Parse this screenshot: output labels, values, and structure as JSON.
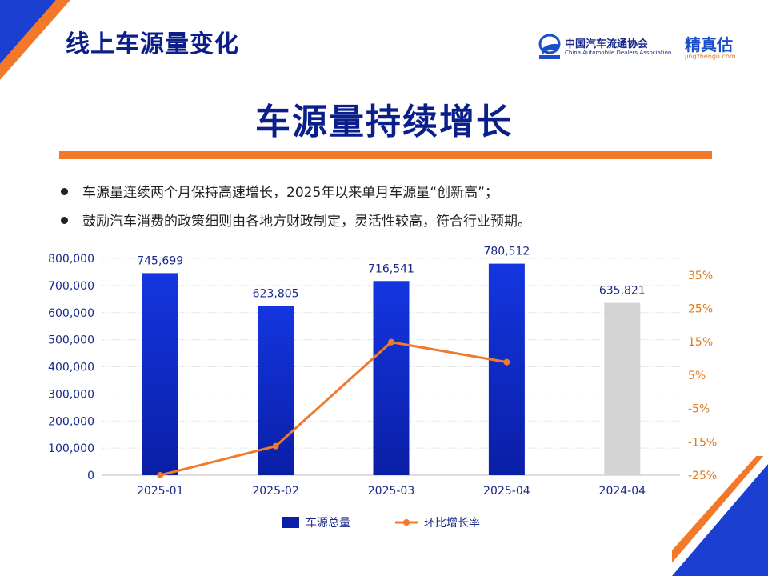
{
  "page": {
    "title": "线上车源量变化",
    "headline": "车源量持续增长",
    "bullets": [
      "车源量连续两个月保持高速增长，2025年以来单月车源量“创新高”；",
      "鼓励汽车消费的政策细则由各地方财政制定，灵活性较高，符合行业预期。"
    ]
  },
  "logos": {
    "association_cn": "中国汽车流通协会",
    "association_en": "China Automobile Dealers Association",
    "brand_cn": "精真估",
    "brand_en": "jingzhengu.com"
  },
  "colors": {
    "title": "#0b1f8a",
    "accent_orange": "#f4782a",
    "bar_blue_top": "#1436e0",
    "bar_blue_bottom": "#0a1fa6",
    "bar_gray": "#d4d4d4",
    "line": "#f07a2c",
    "right_axis_text": "#e07a1c"
  },
  "chart_data": {
    "type": "bar",
    "categories": [
      "2025-01",
      "2025-02",
      "2025-03",
      "2025-04",
      "2024-04"
    ],
    "series": [
      {
        "name": "车源总量",
        "type": "bar",
        "axis": "left",
        "values": [
          745699,
          623805,
          716541,
          780512,
          635821
        ],
        "labels": [
          "745,699",
          "623,805",
          "716,541",
          "780,512",
          "635,821"
        ],
        "highlight": [
          false,
          false,
          false,
          false,
          true
        ]
      },
      {
        "name": "环比增长率",
        "type": "line",
        "axis": "right",
        "unit": "%",
        "values": [
          -25,
          -16.3,
          14.9,
          8.9,
          null
        ]
      }
    ],
    "y_left": {
      "lim": [
        0,
        800000
      ],
      "ticks": [
        0,
        100000,
        200000,
        300000,
        400000,
        500000,
        600000,
        700000,
        800000
      ],
      "tick_labels": [
        "0",
        "100,000",
        "200,000",
        "300,000",
        "400,000",
        "500,000",
        "600,000",
        "700,000",
        "800,000"
      ]
    },
    "y_right": {
      "lim": [
        -25,
        40
      ],
      "ticks": [
        -25,
        -15,
        -5,
        5,
        15,
        25,
        35
      ],
      "tick_labels": [
        "-25%",
        "-15%",
        "-5%",
        "5%",
        "15%",
        "25%",
        "35%"
      ]
    },
    "grid": true,
    "legend_position": "bottom"
  }
}
